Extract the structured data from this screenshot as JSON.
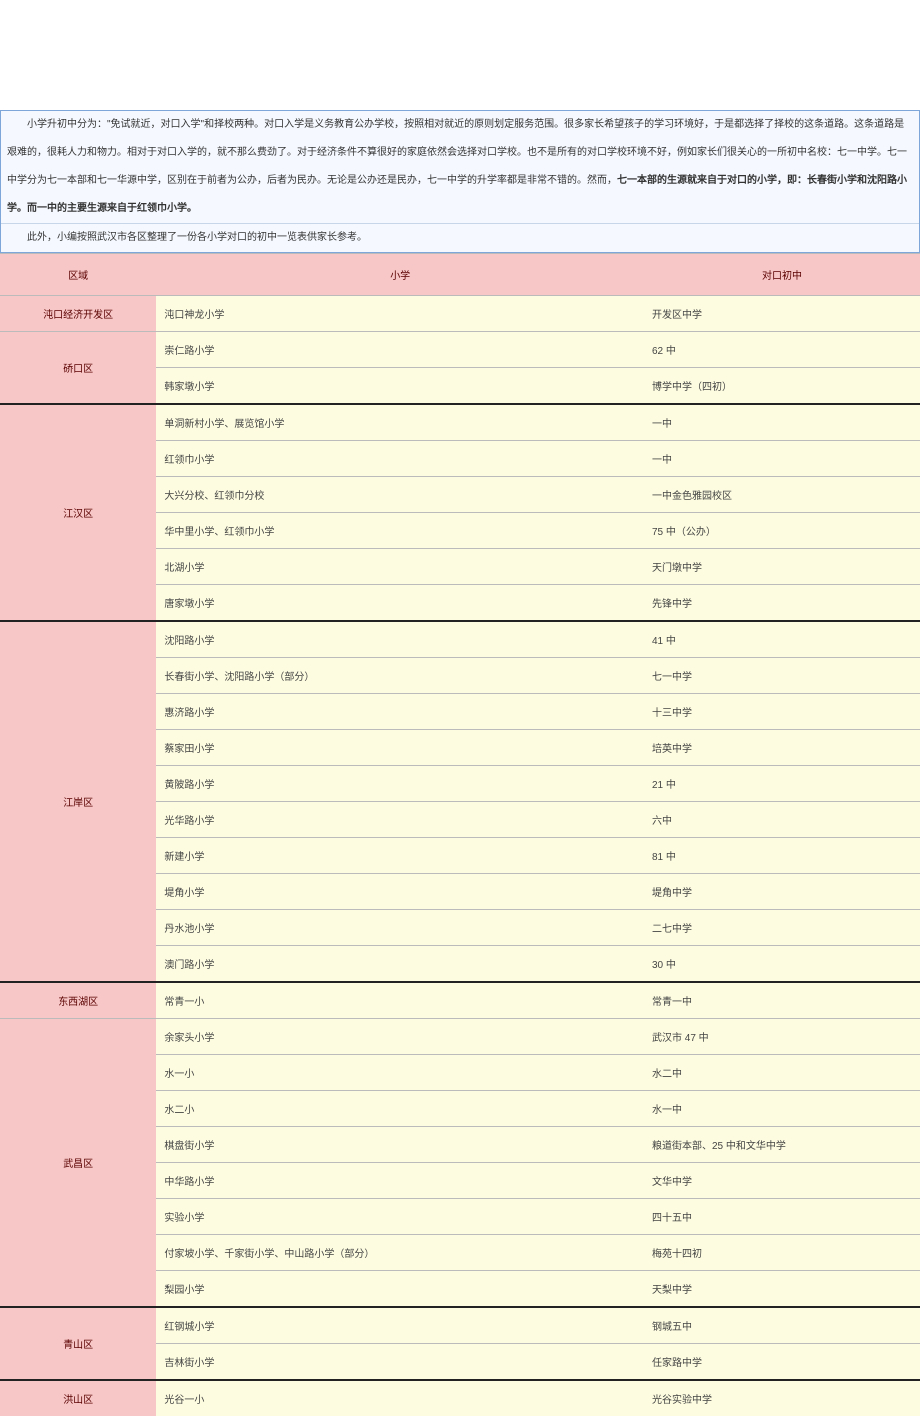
{
  "intro": {
    "p1": "小学升初中分为：\"免试就近，对口入学\"和择校两种。对口入学是义务教育公办学校，按照相对就近的原则划定服务范围。很多家长希望孩子的学习环境好，于是都选择了择校的这条道路。这条道路是艰难的，很耗人力和物力。相对于对口入学的，就不那么费劲了。对于经济条件不算很好的家庭依然会选择对口学校。也不是所有的对口学校环境不好，例如家长们很关心的一所初中名校：七一中学。七一中学分为七一本部和七一华源中学，区别在于前者为公办，后者为民办。无论是公办还是民办，七一中学的升学率都是非常不错的。然而，",
    "bold": "七一本部的生源就来自于对口的小学，即：长春街小学和沈阳路小学。而一中的主要生源来自于红领巾小学。",
    "p2": "此外，小编按照武汉市各区整理了一份各小学对口的初中一览表供家长参考。"
  },
  "headers": {
    "region": "区域",
    "primary": "小学",
    "middle": "对口初中"
  },
  "groups": [
    {
      "region": "沌口经济开发区",
      "heavyTop": false,
      "rows": [
        {
          "primary": "沌口神龙小学",
          "middle": "开发区中学"
        }
      ]
    },
    {
      "region": "硚口区",
      "heavyTop": false,
      "rows": [
        {
          "primary": "崇仁路小学",
          "middle": "62 中"
        },
        {
          "primary": "韩家墩小学",
          "middle": "博学中学（四初）"
        }
      ]
    },
    {
      "region": "江汉区",
      "heavyTop": true,
      "rows": [
        {
          "primary": "单洞新村小学、展览馆小学",
          "middle": "一中"
        },
        {
          "primary": "红领巾小学",
          "middle": "一中"
        },
        {
          "primary": "大兴分校、红领巾分校",
          "middle": "一中金色雅园校区"
        },
        {
          "primary": "华中里小学、红领巾小学",
          "middle": "75 中（公办）"
        },
        {
          "primary": "北湖小学",
          "middle": "天门墩中学"
        },
        {
          "primary": "唐家墩小学",
          "middle": "先锋中学"
        }
      ]
    },
    {
      "region": "江岸区",
      "heavyTop": true,
      "rows": [
        {
          "primary": "沈阳路小学",
          "middle": "41 中"
        },
        {
          "primary": "长春街小学、沈阳路小学（部分）",
          "middle": "七一中学"
        },
        {
          "primary": "惠济路小学",
          "middle": "十三中学"
        },
        {
          "primary": "蔡家田小学",
          "middle": "培英中学"
        },
        {
          "primary": "黄陂路小学",
          "middle": "21 中"
        },
        {
          "primary": "光华路小学",
          "middle": "六中"
        },
        {
          "primary": "新建小学",
          "middle": "81 中"
        },
        {
          "primary": "堤角小学",
          "middle": "堤角中学"
        },
        {
          "primary": "丹水池小学",
          "middle": "二七中学"
        },
        {
          "primary": "澳门路小学",
          "middle": "30 中"
        }
      ]
    },
    {
      "region": "东西湖区",
      "heavyTop": true,
      "rows": [
        {
          "primary": "常青一小",
          "middle": "常青一中"
        }
      ]
    },
    {
      "region": "武昌区",
      "heavyTop": false,
      "rows": [
        {
          "primary": "余家头小学",
          "middle": "武汉市 47 中"
        },
        {
          "primary": "水一小",
          "middle": "水二中"
        },
        {
          "primary": "水二小",
          "middle": "水一中"
        },
        {
          "primary": "棋盘街小学",
          "middle": "粮道街本部、25 中和文华中学"
        },
        {
          "primary": "中华路小学",
          "middle": "文华中学"
        },
        {
          "primary": "实验小学",
          "middle": "四十五中"
        },
        {
          "primary": "付家坡小学、千家街小学、中山路小学（部分）",
          "middle": "梅苑十四初"
        },
        {
          "primary": "梨园小学",
          "middle": "天梨中学"
        }
      ]
    },
    {
      "region": "青山区",
      "heavyTop": true,
      "rows": [
        {
          "primary": "红钢城小学",
          "middle": "钢城五中"
        },
        {
          "primary": "吉林街小学",
          "middle": "任家路中学"
        }
      ]
    },
    {
      "region": "洪山区",
      "heavyTop": true,
      "rows": [
        {
          "primary": "光谷一小",
          "middle": "光谷实验中学"
        }
      ]
    }
  ],
  "colwidths": {
    "region": "17%",
    "primary": "53%",
    "middle": "30%"
  }
}
